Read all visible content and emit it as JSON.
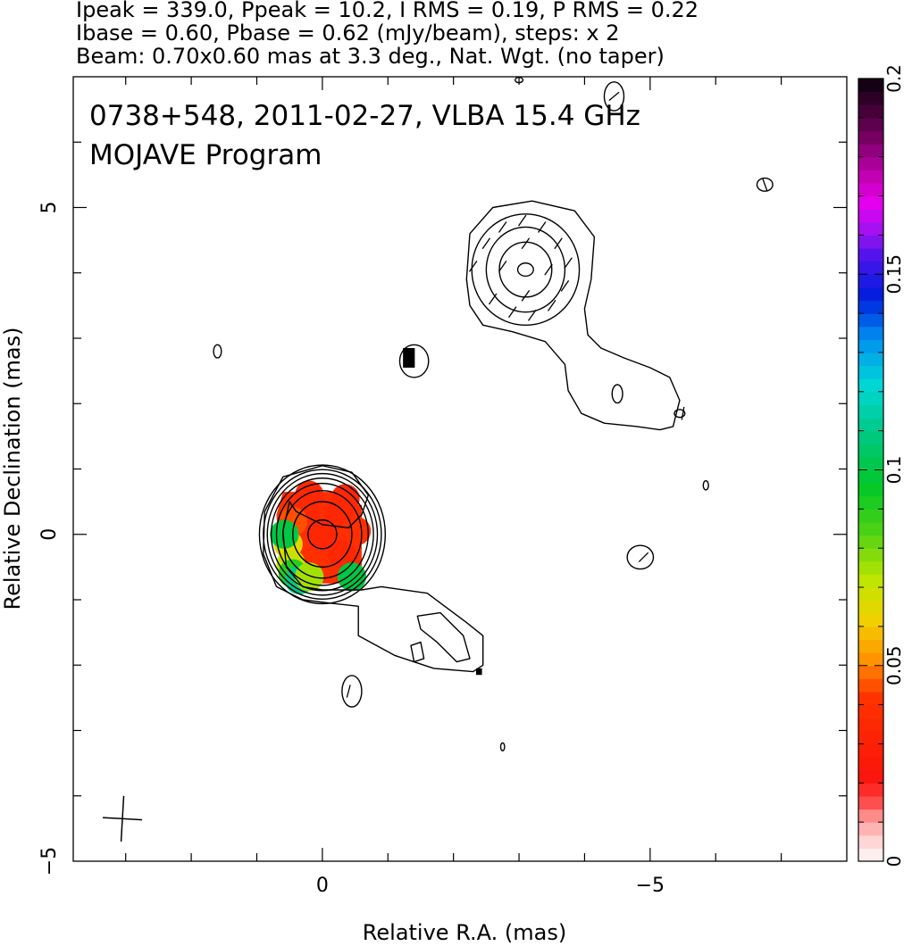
{
  "header": {
    "line1": "Ipeak = 339.0, Ppeak = 10.2, I RMS = 0.19, P RMS = 0.22",
    "line2": "Ibase = 0.60, Pbase = 0.62 (mJy/beam), steps: x 2",
    "line3": "Beam: 0.70x0.60 mas at 3.3 deg., Nat. Wgt. (no taper)"
  },
  "chart_data": {
    "type": "heatmap",
    "title": "0738+548, 2011-02-27, VLBA 15.4 GHz",
    "subtitle": "MOJAVE Program",
    "xlabel": "Relative R.A. (mas)",
    "ylabel": "Relative Declination (mas)",
    "xlim": [
      3.8,
      -8.0
    ],
    "ylim": [
      -5.0,
      7.0
    ],
    "x_ticks": [
      {
        "value": 0,
        "label": "0"
      },
      {
        "value": -5,
        "label": "−5"
      }
    ],
    "y_ticks": [
      {
        "value": 5,
        "label": "5"
      },
      {
        "value": 0,
        "label": "0"
      },
      {
        "value": -5,
        "label": "−5"
      }
    ],
    "grid": false,
    "colorbar": {
      "range": [
        0,
        0.2
      ],
      "ticks": [
        {
          "value": 0,
          "label": "0"
        },
        {
          "value": 0.05,
          "label": "0.05"
        },
        {
          "value": 0.1,
          "label": "0.1"
        },
        {
          "value": 0.15,
          "label": "0.15"
        },
        {
          "value": 0.2,
          "label": "0.2"
        }
      ]
    },
    "contours": [
      {
        "id": "core",
        "center": [
          0,
          0
        ],
        "rx": [
          0.22,
          0.45,
          0.6,
          0.7,
          0.78,
          0.84,
          0.9,
          0.96
        ],
        "ry": [
          0.22,
          0.5,
          0.67,
          0.78,
          0.86,
          0.93,
          0.99,
          1.06
        ]
      },
      {
        "id": "outer-envelope",
        "points": [
          [
            0.5,
            0.5
          ],
          [
            0.6,
            0.05
          ],
          [
            0.55,
            -0.5
          ],
          [
            0.3,
            -0.8
          ],
          [
            0.0,
            -0.85
          ],
          [
            -0.6,
            -0.85
          ],
          [
            -0.9,
            -0.8
          ],
          [
            -1.6,
            -0.9
          ],
          [
            -2.2,
            -1.35
          ],
          [
            -2.45,
            -1.55
          ],
          [
            -2.45,
            -2.0
          ],
          [
            -2.3,
            -2.1
          ],
          [
            -1.7,
            -2.05
          ],
          [
            -1.1,
            -1.85
          ],
          [
            -0.55,
            -1.55
          ],
          [
            -0.55,
            -1.1
          ],
          [
            -0.1,
            -1.05
          ],
          [
            0.3,
            -1.0
          ],
          [
            0.7,
            -0.8
          ],
          [
            0.9,
            -0.3
          ],
          [
            0.88,
            0.35
          ],
          [
            0.6,
            0.88
          ],
          [
            0.0,
            1.05
          ],
          [
            -0.45,
            0.95
          ],
          [
            -0.7,
            0.6
          ],
          [
            -0.6,
            0.3
          ],
          [
            -0.4,
            0.1
          ],
          [
            0.0,
            0.15
          ],
          [
            0.4,
            0.35
          ]
        ]
      },
      {
        "id": "knot-hole",
        "points": [
          [
            -1.45,
            -1.25
          ],
          [
            -1.8,
            -1.2
          ],
          [
            -2.15,
            -1.55
          ],
          [
            -2.25,
            -1.9
          ],
          [
            -2.05,
            -1.95
          ],
          [
            -1.75,
            -1.65
          ],
          [
            -1.5,
            -1.45
          ]
        ]
      },
      {
        "id": "small-knot",
        "points": [
          [
            -1.35,
            -1.7
          ],
          [
            -1.5,
            -1.65
          ],
          [
            -1.55,
            -1.9
          ],
          [
            -1.4,
            -1.95
          ]
        ]
      },
      {
        "id": "north-jet",
        "points": [
          [
            -2.2,
            3.9
          ],
          [
            -2.25,
            4.6
          ],
          [
            -2.6,
            5.0
          ],
          [
            -3.2,
            5.1
          ],
          [
            -3.85,
            4.95
          ],
          [
            -4.15,
            4.55
          ],
          [
            -4.1,
            3.9
          ],
          [
            -4.0,
            3.45
          ],
          [
            -4.05,
            3.05
          ],
          [
            -4.25,
            2.85
          ],
          [
            -4.6,
            2.7
          ],
          [
            -5.0,
            2.55
          ],
          [
            -5.3,
            2.4
          ],
          [
            -5.45,
            2.05
          ],
          [
            -5.35,
            1.65
          ],
          [
            -5.15,
            1.6
          ],
          [
            -4.8,
            1.65
          ],
          [
            -4.3,
            1.7
          ],
          [
            -3.95,
            1.85
          ],
          [
            -3.75,
            2.2
          ],
          [
            -3.7,
            2.6
          ],
          [
            -3.4,
            2.95
          ],
          [
            -2.9,
            3.1
          ],
          [
            -2.45,
            3.2
          ],
          [
            -2.25,
            3.5
          ]
        ]
      },
      {
        "id": "north-knot-1",
        "center": [
          -3.1,
          4.05
        ],
        "rx": [
          0.82
        ],
        "ry": [
          0.85
        ]
      },
      {
        "id": "north-knot-2",
        "center": [
          -3.1,
          4.05
        ],
        "rx": [
          0.6
        ],
        "ry": [
          0.65
        ]
      },
      {
        "id": "north-knot-3",
        "center": [
          -3.1,
          4.05
        ],
        "rx": [
          0.4
        ],
        "ry": [
          0.42
        ]
      },
      {
        "id": "north-knot-4",
        "center": [
          -3.1,
          4.05
        ],
        "rx": [
          0.12
        ],
        "ry": [
          0.1
        ]
      },
      {
        "id": "isl-1",
        "center": [
          1.6,
          2.8
        ],
        "rx": [
          0.06
        ],
        "ry": [
          0.1
        ]
      },
      {
        "id": "isl-2",
        "center": [
          -1.4,
          2.65
        ],
        "rx": [
          0.22
        ],
        "ry": [
          0.25
        ]
      },
      {
        "id": "isl-3",
        "center": [
          -4.45,
          6.7
        ],
        "rx": [
          0.15
        ],
        "ry": [
          0.22
        ]
      },
      {
        "id": "isl-4",
        "center": [
          -6.75,
          5.35
        ],
        "rx": [
          0.12
        ],
        "ry": [
          0.1
        ]
      },
      {
        "id": "isl-5",
        "center": [
          -4.5,
          2.15
        ],
        "rx": [
          0.08
        ],
        "ry": [
          0.14
        ]
      },
      {
        "id": "isl-6",
        "center": [
          -5.45,
          1.85
        ],
        "rx": [
          0.08
        ],
        "ry": [
          0.06
        ]
      },
      {
        "id": "isl-7",
        "center": [
          -5.85,
          0.75
        ],
        "rx": [
          0.04
        ],
        "ry": [
          0.07
        ]
      },
      {
        "id": "isl-8",
        "center": [
          -4.85,
          -0.35
        ],
        "rx": [
          0.2
        ],
        "ry": [
          0.18
        ]
      },
      {
        "id": "isl-9",
        "center": [
          -0.45,
          -2.4
        ],
        "rx": [
          0.15
        ],
        "ry": [
          0.24
        ]
      },
      {
        "id": "isl-10",
        "center": [
          -2.75,
          -3.25
        ],
        "rx": [
          0.03
        ],
        "ry": [
          0.06
        ]
      },
      {
        "id": "isl-11",
        "center": [
          -3.0,
          6.95
        ],
        "rx": [
          0.06
        ],
        "ry": [
          0.04
        ]
      }
    ],
    "polarization_pixels": [
      {
        "x": 0.0,
        "y": 0.0,
        "value": 0.035
      },
      {
        "x": -0.25,
        "y": 0.3,
        "value": 0.035
      },
      {
        "x": 0.25,
        "y": 0.3,
        "value": 0.035
      },
      {
        "x": 0.35,
        "y": -0.2,
        "value": 0.04
      },
      {
        "x": -0.3,
        "y": -0.3,
        "value": 0.035
      },
      {
        "x": 0.2,
        "y": 0.6,
        "value": 0.036
      },
      {
        "x": -0.35,
        "y": 0.55,
        "value": 0.036
      },
      {
        "x": 0.45,
        "y": 0.2,
        "value": 0.045
      },
      {
        "x": 0.52,
        "y": -0.15,
        "value": 0.065
      },
      {
        "x": 0.48,
        "y": -0.45,
        "value": 0.07
      },
      {
        "x": 0.58,
        "y": 0.0,
        "value": 0.1
      },
      {
        "x": 0.45,
        "y": -0.6,
        "value": 0.09
      },
      {
        "x": 0.35,
        "y": -0.7,
        "value": 0.11
      },
      {
        "x": 0.2,
        "y": -0.65,
        "value": 0.075
      },
      {
        "x": -0.45,
        "y": -0.65,
        "value": 0.1
      },
      {
        "x": -0.52,
        "y": 0.05,
        "value": 0.04
      }
    ],
    "vectors": [
      {
        "x": -2.3,
        "y": 4.1,
        "angle": 35
      },
      {
        "x": -2.5,
        "y": 4.45,
        "angle": 35
      },
      {
        "x": -2.75,
        "y": 4.7,
        "angle": 35
      },
      {
        "x": -3.05,
        "y": 4.8,
        "angle": 35
      },
      {
        "x": -3.35,
        "y": 4.7,
        "angle": 35
      },
      {
        "x": -3.6,
        "y": 4.45,
        "angle": 35
      },
      {
        "x": -3.75,
        "y": 4.15,
        "angle": 35
      },
      {
        "x": -3.7,
        "y": 3.8,
        "angle": 35
      },
      {
        "x": -3.5,
        "y": 3.5,
        "angle": 35
      },
      {
        "x": -3.2,
        "y": 3.35,
        "angle": 35
      },
      {
        "x": -2.9,
        "y": 3.4,
        "angle": 35
      },
      {
        "x": -2.6,
        "y": 3.6,
        "angle": 35
      },
      {
        "x": -2.75,
        "y": 4.1,
        "angle": 35
      },
      {
        "x": -3.45,
        "y": 4.05,
        "angle": 35
      },
      {
        "x": -3.1,
        "y": 4.45,
        "angle": 35
      },
      {
        "x": -3.1,
        "y": 3.65,
        "angle": 35
      },
      {
        "x": -4.9,
        "y": -0.35,
        "angle": 45
      },
      {
        "x": -0.4,
        "y": -2.4,
        "angle": 15
      },
      {
        "x": -6.75,
        "y": 5.35,
        "angle": -20
      },
      {
        "x": -4.45,
        "y": 6.7,
        "angle": 50
      },
      {
        "x": -5.5,
        "y": 1.85,
        "angle": 10
      }
    ],
    "markers": [
      {
        "x": -1.32,
        "y": 2.7,
        "w": 0.18,
        "h": 0.3
      },
      {
        "x": -2.39,
        "y": -2.1,
        "w": 0.09,
        "h": 0.1
      }
    ],
    "beam": {
      "center": [
        3.05,
        -4.35
      ],
      "major": 0.7,
      "minor": 0.6,
      "pa": 3.3
    }
  }
}
